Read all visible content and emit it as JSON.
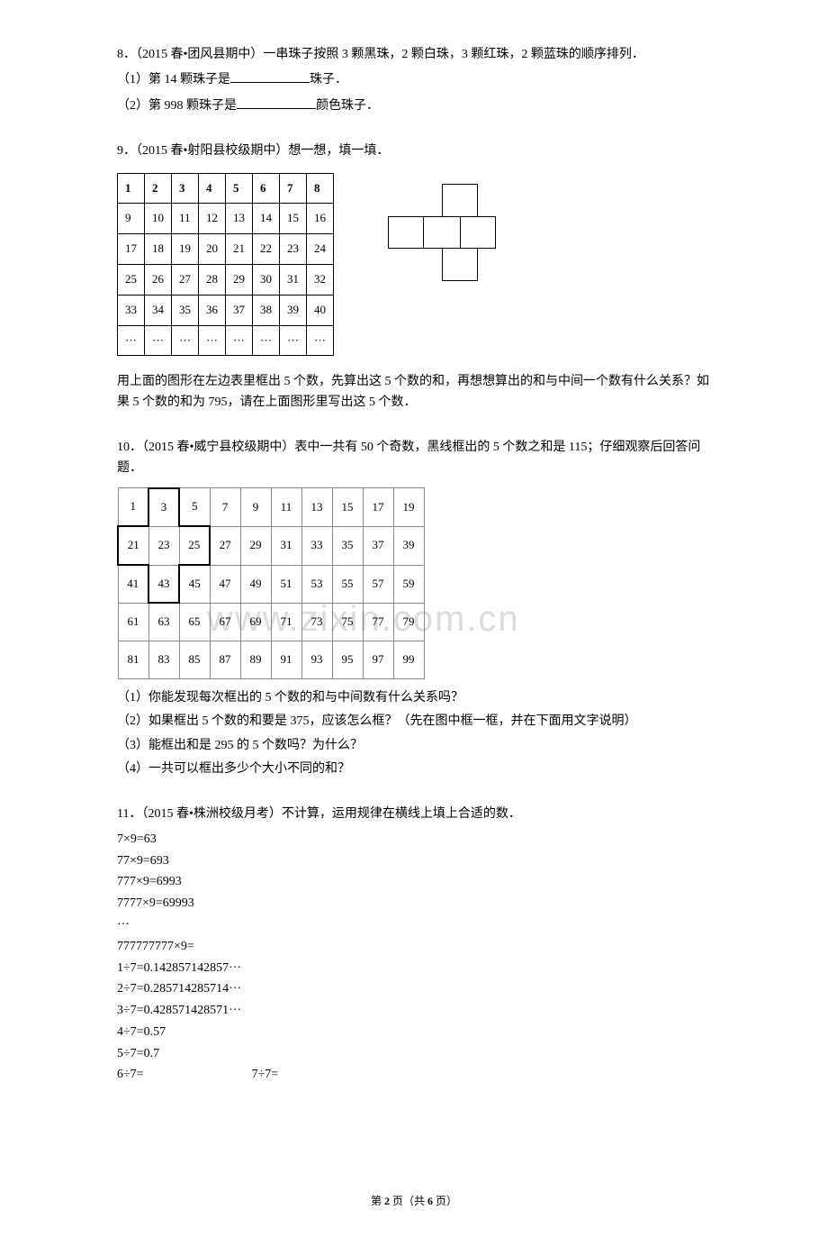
{
  "q8": {
    "prefix": "8．（2015 春•团风县期中）一串珠子按照 3 颗黑珠，2 颗白珠，3 颗红珠，2 颗蓝珠的顺序排列．",
    "part1_a": "（1）第 14 颗珠子是",
    "part1_b": "珠子．",
    "part2_a": "（2）第 998 颗珠子是",
    "part2_b": "颜色珠子．"
  },
  "q9": {
    "prefix": "9．（2015 春•射阳县校级期中）想一想，填一填．",
    "grid": [
      [
        "1",
        "2",
        "3",
        "4",
        "5",
        "6",
        "7",
        "8"
      ],
      [
        "9",
        "10",
        "11",
        "12",
        "13",
        "14",
        "15",
        "16"
      ],
      [
        "17",
        "18",
        "19",
        "20",
        "21",
        "22",
        "23",
        "24"
      ],
      [
        "25",
        "26",
        "27",
        "28",
        "29",
        "30",
        "31",
        "32"
      ],
      [
        "33",
        "34",
        "35",
        "36",
        "37",
        "38",
        "39",
        "40"
      ],
      [
        "···",
        "···",
        "···",
        "···",
        "···",
        "···",
        "···",
        "···"
      ]
    ],
    "body": "用上面的图形在左边表里框出 5 个数，先算出这 5 个数的和，再想想算出的和与中间一个数有什么关系？如果 5 个数的和为 795，请在上面图形里写出这 5 个数．"
  },
  "q10": {
    "prefix": "10．（2015 春•威宁县校级期中）表中一共有 50 个奇数，黑线框出的 5 个数之和是 115；仔细观察后回答问题．",
    "grid": [
      [
        "1",
        "3",
        "5",
        "7",
        "9",
        "11",
        "13",
        "15",
        "17",
        "19"
      ],
      [
        "21",
        "23",
        "25",
        "27",
        "29",
        "31",
        "33",
        "35",
        "37",
        "39"
      ],
      [
        "41",
        "43",
        "45",
        "47",
        "49",
        "51",
        "53",
        "55",
        "57",
        "59"
      ],
      [
        "61",
        "63",
        "65",
        "67",
        "69",
        "71",
        "73",
        "75",
        "77",
        "79"
      ],
      [
        "81",
        "83",
        "85",
        "87",
        "89",
        "91",
        "93",
        "95",
        "97",
        "99"
      ]
    ],
    "part1": "（1）你能发现每次框出的 5 个数的和与中间数有什么关系吗？",
    "part2": "（2）如果框出 5 个数的和要是 375，应该怎么框？（先在图中框一框，并在下面用文字说明）",
    "part3": "（3）能框出和是 295 的 5 个数吗？为什么？",
    "part4": "（4）一共可以框出多少个大小不同的和？"
  },
  "q11": {
    "prefix": "11．（2015 春•株洲校级月考）不计算，运用规律在横线上填上合适的数．",
    "lines": [
      "7×9=63",
      "77×9=693",
      "777×9=6993",
      "7777×9=69993",
      "···",
      "777777777×9=",
      "1÷7=0.142857142857···",
      "2÷7=0.285714285714···",
      "3÷7=0.428571428571···",
      "4÷7=0.57",
      "5÷7=0.7"
    ],
    "pair_left": "6÷7=",
    "pair_right": "7÷7="
  },
  "watermark": "www.zixin.com.cn",
  "footer_a": "第 ",
  "footer_b": "2",
  "footer_c": " 页（共 ",
  "footer_d": "6",
  "footer_e": " 页）"
}
